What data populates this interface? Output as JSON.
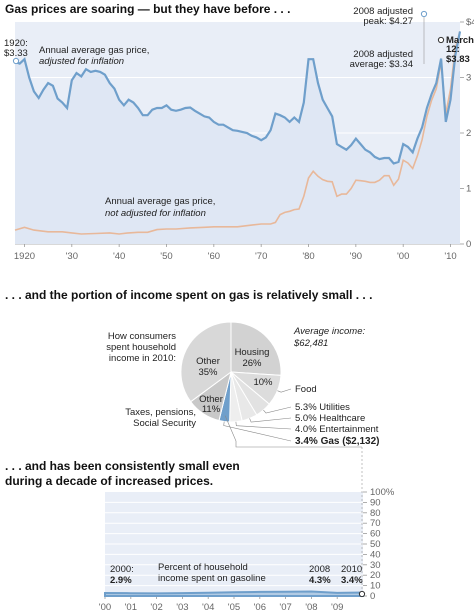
{
  "sections": {
    "title1": "Gas prices are soaring  — but they have before . . .",
    "title2": ". . . and the portion of income spent on gas is relatively small . . .",
    "title3a": ". . . and has been consistently small even",
    "title3b": "during a decade of increased prices."
  },
  "chart_data": [
    {
      "type": "line",
      "title": "Gas prices are soaring  — but they have before . . .",
      "x_tick_labels": [
        "1920",
        "'30",
        "'40",
        "'50",
        "'60",
        "'70",
        "'80",
        "'90",
        "'00",
        "'10"
      ],
      "y_tick_labels": [
        "$4",
        "3",
        "2",
        "1",
        "0"
      ],
      "ylim": [
        0,
        4
      ],
      "xlim": [
        1918,
        2012
      ],
      "series": [
        {
          "name": "Annual average gas price, adjusted for inflation",
          "color": "#6f9fcb",
          "x": [
            1918,
            1919,
            1920,
            1921,
            1922,
            1923,
            1924,
            1925,
            1926,
            1927,
            1928,
            1929,
            1930,
            1931,
            1932,
            1933,
            1934,
            1935,
            1936,
            1937,
            1938,
            1939,
            1940,
            1941,
            1942,
            1943,
            1944,
            1945,
            1946,
            1947,
            1948,
            1949,
            1950,
            1951,
            1952,
            1953,
            1954,
            1955,
            1956,
            1957,
            1958,
            1959,
            1960,
            1961,
            1962,
            1963,
            1964,
            1965,
            1966,
            1967,
            1968,
            1969,
            1970,
            1971,
            1972,
            1973,
            1974,
            1975,
            1976,
            1977,
            1978,
            1979,
            1980,
            1981,
            1982,
            1983,
            1984,
            1985,
            1986,
            1987,
            1988,
            1989,
            1990,
            1991,
            1992,
            1993,
            1994,
            1995,
            1996,
            1997,
            1998,
            1999,
            2000,
            2001,
            2002,
            2003,
            2004,
            2005,
            2006,
            2007,
            2008,
            2009,
            2010,
            2011,
            2012
          ],
          "values": [
            3.28,
            3.25,
            3.33,
            3.0,
            2.75,
            2.63,
            2.78,
            2.9,
            2.85,
            2.62,
            2.55,
            2.45,
            2.95,
            3.08,
            3.02,
            3.15,
            3.1,
            3.12,
            3.1,
            3.05,
            2.9,
            2.8,
            2.6,
            2.5,
            2.6,
            2.55,
            2.45,
            2.32,
            2.32,
            2.42,
            2.45,
            2.45,
            2.5,
            2.42,
            2.4,
            2.42,
            2.45,
            2.46,
            2.4,
            2.35,
            2.3,
            2.28,
            2.2,
            2.15,
            2.15,
            2.1,
            2.05,
            2.04,
            2.02,
            2.0,
            1.95,
            1.92,
            1.87,
            1.92,
            2.05,
            2.35,
            2.32,
            2.28,
            2.2,
            2.28,
            2.2,
            2.55,
            3.33,
            3.33,
            2.9,
            2.6,
            2.45,
            2.3,
            1.8,
            1.75,
            1.7,
            1.78,
            1.9,
            1.8,
            1.7,
            1.65,
            1.57,
            1.53,
            1.55,
            1.55,
            1.45,
            1.48,
            1.8,
            1.75,
            1.65,
            1.9,
            2.1,
            2.45,
            2.7,
            2.9,
            3.34,
            2.2,
            2.6,
            3.4,
            3.83
          ]
        },
        {
          "name": "Annual average gas price, not adjusted for inflation",
          "color": "#e8b89a",
          "x": [
            1918,
            1920,
            1922,
            1925,
            1928,
            1930,
            1932,
            1935,
            1938,
            1940,
            1942,
            1944,
            1946,
            1948,
            1950,
            1952,
            1955,
            1958,
            1960,
            1962,
            1965,
            1968,
            1970,
            1971,
            1972,
            1973,
            1974,
            1975,
            1976,
            1977,
            1978,
            1979,
            1980,
            1981,
            1982,
            1983,
            1984,
            1985,
            1986,
            1987,
            1988,
            1989,
            1990,
            1991,
            1992,
            1993,
            1994,
            1995,
            1996,
            1997,
            1998,
            1999,
            2000,
            2001,
            2002,
            2003,
            2004,
            2005,
            2006,
            2007,
            2008,
            2009,
            2010,
            2011,
            2012
          ],
          "values": [
            0.25,
            0.3,
            0.25,
            0.22,
            0.22,
            0.2,
            0.18,
            0.19,
            0.2,
            0.18,
            0.2,
            0.21,
            0.21,
            0.26,
            0.27,
            0.27,
            0.29,
            0.3,
            0.31,
            0.31,
            0.31,
            0.34,
            0.36,
            0.36,
            0.36,
            0.39,
            0.53,
            0.57,
            0.59,
            0.62,
            0.63,
            0.86,
            1.19,
            1.31,
            1.22,
            1.16,
            1.13,
            1.12,
            0.86,
            0.9,
            0.9,
            1.0,
            1.15,
            1.14,
            1.13,
            1.11,
            1.11,
            1.15,
            1.23,
            1.23,
            1.06,
            1.17,
            1.51,
            1.46,
            1.36,
            1.59,
            1.88,
            2.3,
            2.59,
            2.8,
            3.27,
            2.35,
            2.79,
            3.53,
            3.83
          ]
        }
      ],
      "annotations": [
        {
          "line1": "1920:",
          "line2": "$3.33"
        },
        {
          "line1": "2008 adjusted",
          "line2": "peak: $4.27"
        },
        {
          "line1": "2008 adjusted",
          "line2": "average: $3.34"
        },
        {
          "line1": "March",
          "line2": "12:",
          "line3": "$3.83"
        }
      ],
      "series_labels": [
        {
          "line1": "Annual average gas price,",
          "line2": "adjusted for inflation"
        },
        {
          "line1": "Annual average gas price,",
          "line2": "not adjusted for inflation"
        }
      ]
    },
    {
      "type": "pie",
      "title": "How consumers spent household income in 2010:",
      "caption_lines": [
        "How consumers",
        "spent household",
        "income in 2010:"
      ],
      "average_income_line1": "Average income:",
      "average_income_line2": "$62,481",
      "slices": [
        {
          "label": "Housing",
          "value_label": "26%",
          "value": 26,
          "color": "#d2d2d2"
        },
        {
          "label": "Food",
          "value_label": "10%",
          "value": 10,
          "color": "#dcdcdc"
        },
        {
          "label": "Utilities",
          "value_label": "5.3%",
          "value": 5.3,
          "color": "#e2e2e2"
        },
        {
          "label": "Healthcare",
          "value_label": "5.0%",
          "value": 5.0,
          "color": "#e8e8e8"
        },
        {
          "label": "Entertainment",
          "value_label": "4.0%",
          "value": 4.0,
          "color": "#eeeeee"
        },
        {
          "label": "Gas",
          "value_label": "3.4%",
          "value": 3.4,
          "color": "#6f9fcb"
        },
        {
          "label": "Taxes, pensions, Social Security",
          "value_label": "11%",
          "value": 11,
          "color": "#c8c8c8"
        },
        {
          "label": "Other",
          "value_label": "35%",
          "value": 35,
          "color": "#d8d8d8"
        }
      ],
      "outside_labels": {
        "food": "Food",
        "utilities": "5.3% Utilities",
        "healthcare": "5.0% Healthcare",
        "entertainment": "4.0% Entertainment",
        "gas": "3.4% Gas ($2,132)",
        "taxes_line1": "Taxes, pensions,",
        "taxes_line2": "Social Security",
        "other_top_line1": "Other",
        "other_top_line2": "35%",
        "other_small_line1": "Other",
        "other_small_line2": "11%",
        "housing_line1": "Housing",
        "housing_line2": "26%",
        "food_pct": "10%"
      }
    },
    {
      "type": "area",
      "title": "Percent of household income spent on gasoline",
      "label_line1": "Percent of household",
      "label_line2": "income spent on gasoline",
      "x_tick_labels": [
        "'00",
        "'01",
        "'02",
        "'03",
        "'04",
        "'05",
        "'06",
        "'07",
        "'08",
        "'09"
      ],
      "y_tick_labels": [
        "100%",
        "90",
        "80",
        "70",
        "60",
        "50",
        "40",
        "30",
        "20",
        "10",
        "0"
      ],
      "ylim": [
        0,
        100
      ],
      "x": [
        2000,
        2001,
        2002,
        2003,
        2004,
        2005,
        2006,
        2007,
        2008,
        2009,
        2010
      ],
      "values": [
        2.9,
        2.7,
        2.5,
        2.8,
        3.2,
        3.6,
        3.9,
        4.1,
        4.3,
        3.0,
        3.4
      ],
      "callouts": [
        {
          "year": "2000:",
          "value": "2.9%"
        },
        {
          "year": "2008",
          "value": "4.3%"
        },
        {
          "year": "2010",
          "value": "3.4%"
        }
      ]
    }
  ]
}
